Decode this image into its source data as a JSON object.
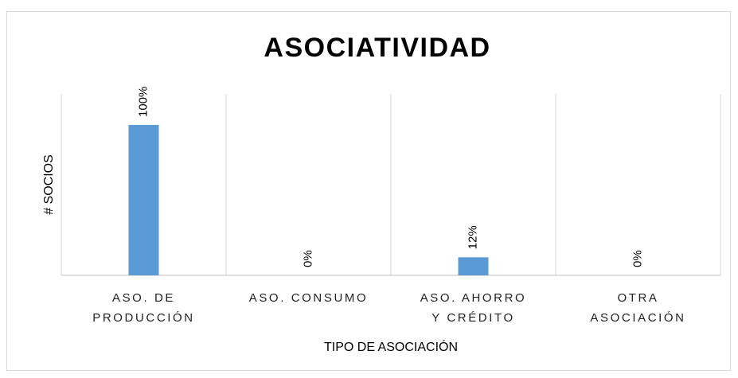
{
  "chart_data": {
    "type": "bar",
    "title": "ASOCIATIVIDAD",
    "y_label": "# SOCIOS",
    "x_label": "TIPO DE ASOCIACIÓN",
    "categories": [
      "ASO. DE PRODUCCIÓN",
      "ASO. CONSUMO",
      "ASO. AHORRO Y CRÉDITO",
      "OTRA ASOCIACIÓN"
    ],
    "values": [
      100,
      0,
      12,
      0
    ],
    "value_labels": [
      "100%",
      "0%",
      "12%",
      "0%"
    ],
    "color": "#5b9bd5"
  }
}
